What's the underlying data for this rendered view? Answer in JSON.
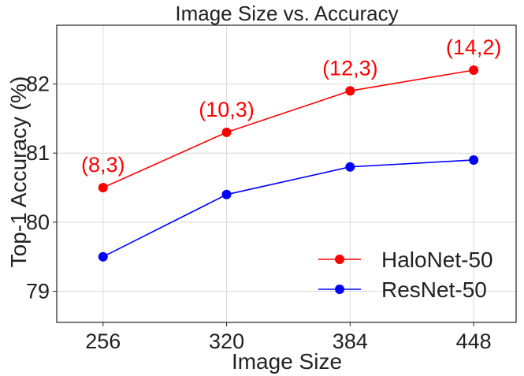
{
  "chart_data": {
    "type": "line",
    "title": "Image Size vs. Accuracy",
    "xlabel": "Image Size",
    "ylabel": "Top-1 Accuracy (%)",
    "x": [
      256,
      320,
      384,
      448
    ],
    "x_ticks": [
      "256",
      "320",
      "384",
      "448"
    ],
    "y_ticks": [
      "79",
      "80",
      "81",
      "82"
    ],
    "xlim": [
      232,
      470
    ],
    "ylim": [
      78.55,
      82.85
    ],
    "grid": true,
    "legend_position": "bottom-right",
    "series": [
      {
        "name": "HaloNet-50",
        "color": "#ff0000",
        "values": [
          80.5,
          81.3,
          81.9,
          82.2
        ],
        "annotations": [
          "(8,3)",
          "(10,3)",
          "(12,3)",
          "(14,2)"
        ]
      },
      {
        "name": "ResNet-50",
        "color": "#0000ff",
        "values": [
          79.5,
          80.4,
          80.8,
          80.9
        ]
      }
    ]
  }
}
